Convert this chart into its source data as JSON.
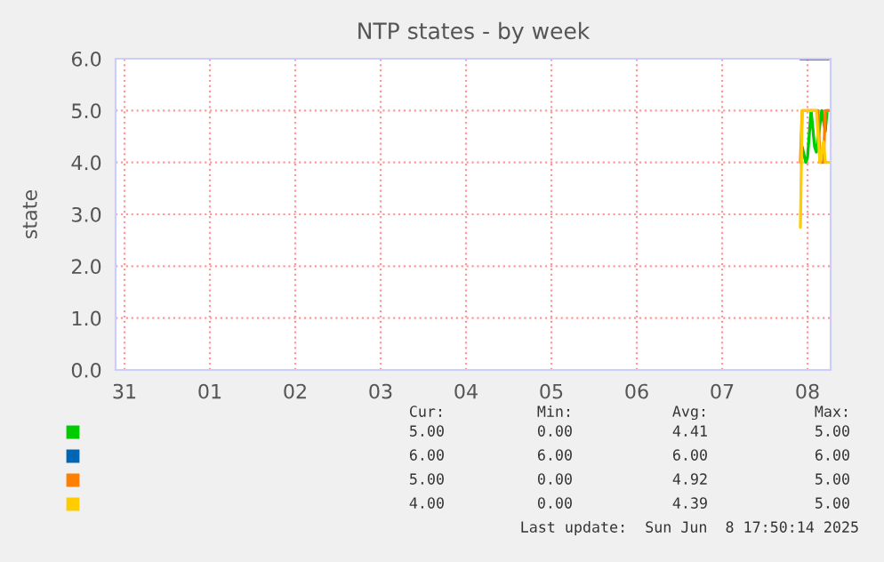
{
  "chart_data": {
    "type": "line",
    "title": "NTP states - by week",
    "ylabel": "state",
    "xlim": [
      "2025-05-31T09:30",
      "2025-06-08T18:30"
    ],
    "xticks": [
      {
        "value": "2025-05-31T12:00",
        "label": "31"
      },
      {
        "value": "2025-06-01T12:00",
        "label": "01"
      },
      {
        "value": "2025-06-02T12:00",
        "label": "02"
      },
      {
        "value": "2025-06-03T12:00",
        "label": "03"
      },
      {
        "value": "2025-06-04T12:00",
        "label": "04"
      },
      {
        "value": "2025-06-05T12:00",
        "label": "05"
      },
      {
        "value": "2025-06-06T12:00",
        "label": "06"
      },
      {
        "value": "2025-06-07T12:00",
        "label": "07"
      },
      {
        "value": "2025-06-08T12:00",
        "label": "08"
      }
    ],
    "ylim": [
      0,
      6
    ],
    "yticks": [
      {
        "value": 0,
        "label": "0.0"
      },
      {
        "value": 1,
        "label": "1.0"
      },
      {
        "value": 2,
        "label": "2.0"
      },
      {
        "value": 3,
        "label": "3.0"
      },
      {
        "value": 4,
        "label": "4.0"
      },
      {
        "value": 5,
        "label": "5.0"
      },
      {
        "value": 6,
        "label": "6.0"
      }
    ],
    "grid": true,
    "series": [
      {
        "color": "#00cc00",
        "x": [
          "2025-06-08T10:30",
          "2025-06-08T11:30",
          "2025-06-08T12:00",
          "2025-06-08T13:00",
          "2025-06-08T14:00",
          "2025-06-08T14:30",
          "2025-06-08T16:00",
          "2025-06-08T17:00",
          "2025-06-08T17:30",
          "2025-06-08T18:00"
        ],
        "values": [
          4.3,
          4.0,
          4.1,
          5.0,
          4.3,
          4.2,
          5.0,
          4.6,
          5.0,
          5.0
        ]
      },
      {
        "color": "#0066b3",
        "x": [
          "2025-06-08T10:00",
          "2025-06-08T18:00"
        ],
        "values": [
          6.0,
          6.0
        ]
      },
      {
        "color": "#ff8000",
        "x": [
          "2025-06-08T10:00",
          "2025-06-08T10:30",
          "2025-06-08T15:00",
          "2025-06-08T15:30",
          "2025-06-08T16:30",
          "2025-06-08T17:00",
          "2025-06-08T18:00"
        ],
        "values": [
          4.0,
          5.0,
          5.0,
          4.0,
          4.0,
          5.0,
          5.0
        ]
      },
      {
        "color": "#ffcc00",
        "x": [
          "2025-06-08T10:00",
          "2025-06-08T10:30",
          "2025-06-08T14:30",
          "2025-06-08T15:30",
          "2025-06-08T16:30",
          "2025-06-08T17:00",
          "2025-06-08T18:00"
        ],
        "values": [
          2.75,
          5.0,
          5.0,
          4.0,
          4.4,
          4.0,
          4.0
        ]
      }
    ],
    "annotations": [
      "Cur:",
      "Min:",
      "Avg:",
      "Max:",
      "5.00",
      "0.00",
      "4.41",
      "5.00",
      "6.00",
      "6.00",
      "6.00",
      "6.00",
      "5.00",
      "0.00",
      "4.92",
      "5.00",
      "4.00",
      "0.00",
      "4.39",
      "5.00",
      "Last update:  Sun Jun  8 17:50:14 2025"
    ]
  }
}
